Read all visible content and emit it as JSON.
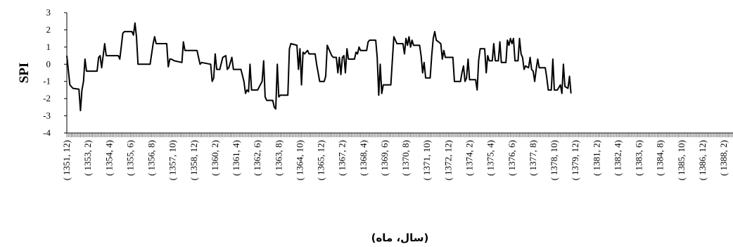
{
  "chart_data": {
    "type": "line",
    "title": "",
    "xlabel": "(سال، ماه)",
    "ylabel": "SPI",
    "ylim": [
      -4,
      3
    ],
    "yticks": [
      3,
      2,
      1,
      0,
      -1,
      -2,
      -3,
      -4
    ],
    "xlim": [
      0,
      440
    ],
    "grid": false,
    "legend": "none",
    "line_color": "#000000",
    "x_tick_labels": [
      {
        "label": "( 1351, 12)",
        "index": 0
      },
      {
        "label": "( 1353, 2)",
        "index": 14
      },
      {
        "label": "( 1354, 4)",
        "index": 28
      },
      {
        "label": "( 1355, 6)",
        "index": 42
      },
      {
        "label": "( 1356, 8)",
        "index": 56
      },
      {
        "label": "( 1357, 10)",
        "index": 70
      },
      {
        "label": "( 1358, 12)",
        "index": 84
      },
      {
        "label": "( 1360, 2)",
        "index": 98
      },
      {
        "label": "( 1361, 4)",
        "index": 112
      },
      {
        "label": "( 1362, 6)",
        "index": 126
      },
      {
        "label": "( 1363, 8)",
        "index": 140
      },
      {
        "label": "( 1364, 10)",
        "index": 154
      },
      {
        "label": "( 1365, 12)",
        "index": 168
      },
      {
        "label": "( 1367, 2)",
        "index": 182
      },
      {
        "label": "( 1368, 4)",
        "index": 196
      },
      {
        "label": "( 1369, 6)",
        "index": 210
      },
      {
        "label": "( 1370, 8)",
        "index": 224
      },
      {
        "label": "( 1371, 10)",
        "index": 238
      },
      {
        "label": "( 1372, 12)",
        "index": 252
      },
      {
        "label": "( 1374, 2)",
        "index": 266
      },
      {
        "label": "( 1375, 4)",
        "index": 280
      },
      {
        "label": "( 1376, 6)",
        "index": 294
      },
      {
        "label": "( 1377, 8)",
        "index": 308
      },
      {
        "label": "( 1378, 10)",
        "index": 322
      },
      {
        "label": "( 1379, 12)",
        "index": 336
      },
      {
        "label": "( 1381, 2)",
        "index": 350
      },
      {
        "label": "( 1382, 4)",
        "index": 364
      },
      {
        "label": "( 1383, 6)",
        "index": 378
      },
      {
        "label": "( 1384, 8)",
        "index": 392
      },
      {
        "label": "( 1385, 10)",
        "index": 406
      },
      {
        "label": "( 1386, 12)",
        "index": 420
      },
      {
        "label": "( 1388, 2)",
        "index": 434
      }
    ],
    "series": [
      {
        "points": [
          [
            0,
            0.5
          ],
          [
            2,
            -1.2
          ],
          [
            4,
            -1.4
          ],
          [
            8,
            -1.45
          ],
          [
            9,
            -2.7
          ],
          [
            10,
            -1.5
          ],
          [
            11,
            -1.0
          ],
          [
            12,
            0.3
          ],
          [
            13,
            -0.4
          ],
          [
            20,
            -0.4
          ],
          [
            21,
            0.4
          ],
          [
            22,
            0.5
          ],
          [
            23,
            -0.2
          ],
          [
            25,
            1.2
          ],
          [
            26,
            0.5
          ],
          [
            34,
            0.5
          ],
          [
            35,
            0.3
          ],
          [
            37,
            1.8
          ],
          [
            38,
            1.9
          ],
          [
            43,
            1.9
          ],
          [
            44,
            1.7
          ],
          [
            45,
            2.4
          ],
          [
            46,
            1.6
          ],
          [
            47,
            0
          ],
          [
            49,
            0
          ],
          [
            55,
            0
          ],
          [
            57,
            1.2
          ],
          [
            58,
            1.6
          ],
          [
            59,
            1.2
          ],
          [
            62,
            1.2
          ],
          [
            66,
            1.2
          ],
          [
            67,
            -0.15
          ],
          [
            68,
            0.3
          ],
          [
            69,
            0.3
          ],
          [
            71,
            0.2
          ],
          [
            76,
            0.1
          ],
          [
            77,
            1.3
          ],
          [
            78,
            0.8
          ],
          [
            83,
            0.8
          ],
          [
            86,
            0.8
          ],
          [
            87,
            0.4
          ],
          [
            88,
            0.0
          ],
          [
            89,
            0.1
          ],
          [
            95,
            0
          ],
          [
            96,
            -1.0
          ],
          [
            97,
            -0.8
          ],
          [
            98,
            0.6
          ],
          [
            99,
            -0.3
          ],
          [
            101,
            -0.3
          ],
          [
            103,
            0.4
          ],
          [
            105,
            0.5
          ],
          [
            106,
            -0.3
          ],
          [
            107,
            -0.2
          ],
          [
            109,
            0.4
          ],
          [
            110,
            -0.3
          ],
          [
            115,
            -0.3
          ],
          [
            117,
            -1.0
          ],
          [
            118,
            -1.7
          ],
          [
            119,
            -1.5
          ],
          [
            120,
            -1.6
          ],
          [
            121,
            0
          ],
          [
            122,
            -1.5
          ],
          [
            124,
            -1.5
          ],
          [
            125,
            -1.5
          ],
          [
            126,
            -1.5
          ],
          [
            129,
            -1.0
          ],
          [
            130,
            0.2
          ],
          [
            131,
            -1.9
          ],
          [
            132,
            -2.1
          ],
          [
            136,
            -2.1
          ],
          [
            137,
            -2.5
          ],
          [
            138,
            -2.6
          ],
          [
            139,
            0.0
          ],
          [
            140,
            -1.9
          ],
          [
            141,
            -1.8
          ],
          [
            146,
            -1.8
          ],
          [
            147,
            0.9
          ],
          [
            148,
            1.2
          ],
          [
            152,
            1.1
          ],
          [
            153,
            -0.3
          ],
          [
            154,
            0.9
          ],
          [
            155,
            -1.2
          ],
          [
            156,
            0.7
          ],
          [
            157,
            0.6
          ],
          [
            159,
            0.8
          ],
          [
            160,
            0.6
          ],
          [
            164,
            0.6
          ],
          [
            165,
            0.0
          ],
          [
            166,
            -0.5
          ],
          [
            167,
            -1.0
          ],
          [
            170,
            -1.0
          ],
          [
            171,
            -0.7
          ],
          [
            172,
            1.1
          ],
          [
            173,
            0.9
          ],
          [
            175,
            0.5
          ],
          [
            176,
            0.4
          ],
          [
            178,
            0.4
          ],
          [
            179,
            -0.5
          ],
          [
            180,
            0.4
          ],
          [
            181,
            -0.6
          ],
          [
            182,
            0.4
          ],
          [
            183,
            0.5
          ],
          [
            184,
            -0.5
          ],
          [
            185,
            0.9
          ],
          [
            186,
            0.3
          ],
          [
            190,
            0.3
          ],
          [
            191,
            0.7
          ],
          [
            192,
            0.6
          ],
          [
            193,
            1.0
          ],
          [
            194,
            0.8
          ],
          [
            198,
            0.8
          ],
          [
            199,
            1.3
          ],
          [
            200,
            1.4
          ],
          [
            204,
            1.4
          ],
          [
            205,
            0.4
          ],
          [
            206,
            -1.8
          ],
          [
            207,
            0.0
          ],
          [
            208,
            -1.7
          ],
          [
            209,
            -1.2
          ],
          [
            214,
            -1.2
          ],
          [
            215,
            0.2
          ],
          [
            216,
            1.6
          ],
          [
            218,
            1.2
          ],
          [
            222,
            1.2
          ],
          [
            223,
            0.6
          ],
          [
            224,
            1.5
          ],
          [
            225,
            1.1
          ],
          [
            226,
            1.6
          ],
          [
            227,
            1.0
          ],
          [
            228,
            1.4
          ],
          [
            229,
            1.1
          ],
          [
            233,
            1.1
          ],
          [
            234,
            0.5
          ],
          [
            235,
            -0.5
          ],
          [
            236,
            0.1
          ],
          [
            237,
            -0.8
          ],
          [
            238,
            -0.8
          ],
          [
            240,
            -0.8
          ],
          [
            241,
            0.5
          ],
          [
            242,
            1.5
          ],
          [
            243,
            1.9
          ],
          [
            244,
            1.4
          ],
          [
            247,
            1.2
          ],
          [
            248,
            0.3
          ],
          [
            249,
            0.8
          ],
          [
            250,
            0.4
          ],
          [
            255,
            0.4
          ],
          [
            256,
            -1.0
          ],
          [
            260,
            -1.0
          ],
          [
            261,
            -0.5
          ],
          [
            262,
            -0.1
          ],
          [
            263,
            -1.0
          ],
          [
            264,
            -0.8
          ],
          [
            265,
            0.3
          ],
          [
            266,
            -0.9
          ],
          [
            270,
            -0.9
          ],
          [
            271,
            -1.5
          ],
          [
            272,
            0.2
          ],
          [
            273,
            0.9
          ],
          [
            276,
            0.9
          ],
          [
            277,
            -0.5
          ],
          [
            278,
            0.5
          ],
          [
            279,
            0.2
          ],
          [
            281,
            0.2
          ],
          [
            282,
            1.2
          ],
          [
            283,
            0.2
          ],
          [
            285,
            0.2
          ],
          [
            286,
            1.3
          ],
          [
            287,
            0.1
          ],
          [
            290,
            0.1
          ],
          [
            291,
            1.4
          ],
          [
            292,
            1.1
          ],
          [
            293,
            1.5
          ],
          [
            294,
            1.2
          ],
          [
            295,
            1.5
          ],
          [
            296,
            0.2
          ],
          [
            298,
            0.2
          ],
          [
            299,
            1.5
          ],
          [
            300,
            0.6
          ],
          [
            301,
            0.4
          ],
          [
            302,
            -0.3
          ],
          [
            303,
            -0.1
          ],
          [
            305,
            -0.2
          ],
          [
            306,
            0.4
          ],
          [
            307,
            -0.3
          ],
          [
            308,
            -0.4
          ],
          [
            309,
            -1.0
          ],
          [
            310,
            -0.3
          ],
          [
            311,
            0.3
          ],
          [
            312,
            -0.2
          ],
          [
            316,
            -0.2
          ],
          [
            317,
            -0.8
          ],
          [
            318,
            -1.5
          ],
          [
            320,
            -1.5
          ],
          [
            321,
            0.3
          ],
          [
            322,
            -1.5
          ],
          [
            324,
            -1.5
          ],
          [
            326,
            -1.2
          ],
          [
            327,
            -1.7
          ],
          [
            328,
            0
          ],
          [
            329,
            -1.3
          ],
          [
            331,
            -1.4
          ],
          [
            332,
            -0.7
          ],
          [
            333,
            -1.7
          ]
        ]
      }
    ]
  }
}
